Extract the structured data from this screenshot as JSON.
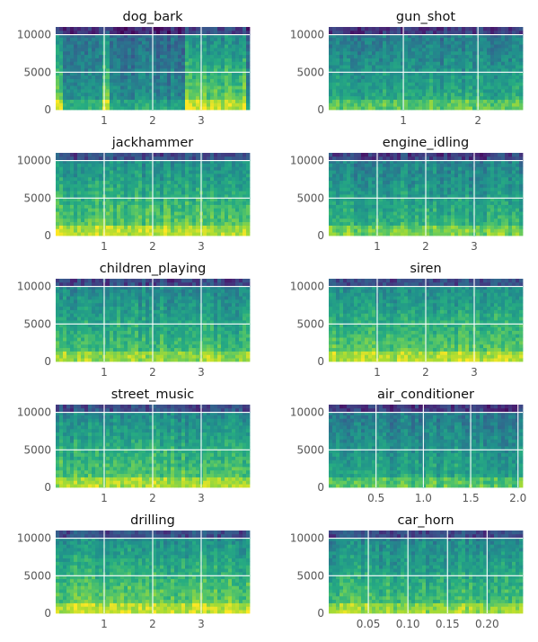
{
  "chart_data": [
    {
      "type": "heatmap",
      "title": "dog_bark",
      "xlim": [
        0,
        4.0
      ],
      "ylim": [
        0,
        11025
      ],
      "xticks": [
        1,
        2,
        3
      ],
      "yticks": [
        0,
        5000,
        10000
      ],
      "x_tick_labels": [
        "1",
        "2",
        "3"
      ],
      "y_tick_labels": [
        "0",
        "5000",
        "10000"
      ],
      "colormap": "viridis",
      "events": [
        [
          0.0,
          0.18
        ],
        [
          1.0,
          1.12
        ],
        [
          2.65,
          3.9
        ]
      ],
      "intensity": 0.32
    },
    {
      "type": "heatmap",
      "title": "gun_shot",
      "xlim": [
        0,
        2.6
      ],
      "ylim": [
        0,
        11025
      ],
      "xticks": [
        1,
        2
      ],
      "yticks": [
        0,
        5000,
        10000
      ],
      "x_tick_labels": [
        "1",
        "2"
      ],
      "y_tick_labels": [
        "0",
        "5000",
        "10000"
      ],
      "colormap": "viridis",
      "events": [
        [
          0.0,
          0.45
        ],
        [
          0.45,
          1.4
        ]
      ],
      "intensity": 0.45
    },
    {
      "type": "heatmap",
      "title": "jackhammer",
      "xlim": [
        0,
        4.0
      ],
      "ylim": [
        0,
        11025
      ],
      "xticks": [
        1,
        2,
        3
      ],
      "yticks": [
        0,
        5000,
        10000
      ],
      "x_tick_labels": [
        "1",
        "2",
        "3"
      ],
      "y_tick_labels": [
        "0",
        "5000",
        "10000"
      ],
      "colormap": "viridis",
      "events": [
        [
          0.2,
          4.0
        ]
      ],
      "intensity": 0.6
    },
    {
      "type": "heatmap",
      "title": "engine_idling",
      "xlim": [
        0,
        4.0
      ],
      "ylim": [
        0,
        11025
      ],
      "xticks": [
        1,
        2,
        3
      ],
      "yticks": [
        0,
        5000,
        10000
      ],
      "x_tick_labels": [
        "1",
        "2",
        "3"
      ],
      "y_tick_labels": [
        "0",
        "5000",
        "10000"
      ],
      "colormap": "viridis",
      "events": [
        [
          0.0,
          4.0
        ]
      ],
      "intensity": 0.5
    },
    {
      "type": "heatmap",
      "title": "children_playing",
      "xlim": [
        0,
        4.0
      ],
      "ylim": [
        0,
        11025
      ],
      "xticks": [
        1,
        2,
        3
      ],
      "yticks": [
        0,
        5000,
        10000
      ],
      "x_tick_labels": [
        "1",
        "2",
        "3"
      ],
      "y_tick_labels": [
        "0",
        "5000",
        "10000"
      ],
      "colormap": "viridis",
      "events": [
        [
          0.0,
          4.0
        ]
      ],
      "intensity": 0.55
    },
    {
      "type": "heatmap",
      "title": "siren",
      "xlim": [
        0,
        4.0
      ],
      "ylim": [
        0,
        11025
      ],
      "xticks": [
        1,
        2,
        3
      ],
      "yticks": [
        0,
        5000,
        10000
      ],
      "x_tick_labels": [
        "1",
        "2",
        "3"
      ],
      "y_tick_labels": [
        "0",
        "5000",
        "10000"
      ],
      "colormap": "viridis",
      "events": [
        [
          0.0,
          4.0
        ]
      ],
      "intensity": 0.6
    },
    {
      "type": "heatmap",
      "title": "street_music",
      "xlim": [
        0,
        4.0
      ],
      "ylim": [
        0,
        11025
      ],
      "xticks": [
        1,
        2,
        3
      ],
      "yticks": [
        0,
        5000,
        10000
      ],
      "x_tick_labels": [
        "1",
        "2",
        "3"
      ],
      "y_tick_labels": [
        "0",
        "5000",
        "10000"
      ],
      "colormap": "viridis",
      "events": [
        [
          0.0,
          4.0
        ]
      ],
      "intensity": 0.58
    },
    {
      "type": "heatmap",
      "title": "air_conditioner",
      "xlim": [
        0,
        2.05
      ],
      "ylim": [
        0,
        11025
      ],
      "xticks": [
        0.5,
        1.0,
        1.5,
        2.0
      ],
      "yticks": [
        0,
        5000,
        10000
      ],
      "x_tick_labels": [
        "0.5",
        "1.0",
        "1.5",
        "2.0"
      ],
      "y_tick_labels": [
        "0",
        "5000",
        "10000"
      ],
      "colormap": "viridis",
      "events": [
        [
          0.0,
          2.05
        ]
      ],
      "intensity": 0.45
    },
    {
      "type": "heatmap",
      "title": "drilling",
      "xlim": [
        0,
        4.0
      ],
      "ylim": [
        0,
        11025
      ],
      "xticks": [
        1,
        2,
        3
      ],
      "yticks": [
        0,
        5000,
        10000
      ],
      "x_tick_labels": [
        "1",
        "2",
        "3"
      ],
      "y_tick_labels": [
        "0",
        "5000",
        "10000"
      ],
      "colormap": "viridis",
      "events": [
        [
          0.0,
          4.0
        ]
      ],
      "intensity": 0.62
    },
    {
      "type": "heatmap",
      "title": "car_horn",
      "xlim": [
        0,
        0.245
      ],
      "ylim": [
        0,
        11025
      ],
      "xticks": [
        0.05,
        0.1,
        0.15,
        0.2
      ],
      "yticks": [
        0,
        5000,
        10000
      ],
      "x_tick_labels": [
        "0.05",
        "0.10",
        "0.15",
        "0.20"
      ],
      "y_tick_labels": [
        "0",
        "5000",
        "10000"
      ],
      "colormap": "viridis",
      "events": [
        [
          0.0,
          0.245
        ]
      ],
      "intensity": 0.55
    }
  ]
}
